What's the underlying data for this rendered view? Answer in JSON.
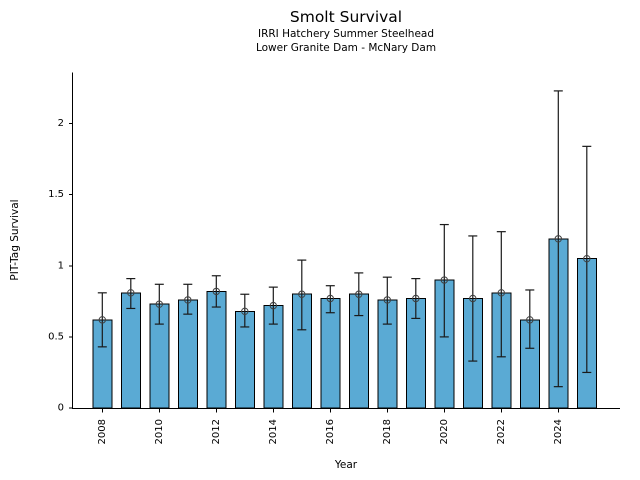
{
  "chart_data": {
    "type": "bar",
    "title": "Smolt Survival",
    "subtitle1": "IRRI Hatchery Summer Steelhead",
    "subtitle2": "Lower Granite Dam - McNary Dam",
    "xlabel": "Year",
    "ylabel": "PIT-Tag Survival",
    "categories": [
      2008,
      2009,
      2010,
      2011,
      2012,
      2013,
      2014,
      2015,
      2016,
      2017,
      2018,
      2019,
      2020,
      2021,
      2022,
      2023,
      2024,
      2025
    ],
    "values": [
      0.62,
      0.81,
      0.73,
      0.76,
      0.82,
      0.68,
      0.72,
      0.8,
      0.77,
      0.8,
      0.76,
      0.77,
      0.9,
      0.77,
      0.81,
      0.62,
      1.19,
      1.05
    ],
    "err_lo": [
      0.43,
      0.7,
      0.59,
      0.66,
      0.71,
      0.57,
      0.59,
      0.55,
      0.67,
      0.65,
      0.59,
      0.63,
      0.5,
      0.33,
      0.36,
      0.42,
      0.15,
      0.25
    ],
    "err_hi": [
      0.81,
      0.91,
      0.87,
      0.87,
      0.93,
      0.8,
      0.85,
      1.04,
      0.86,
      0.95,
      0.92,
      0.91,
      1.29,
      1.21,
      1.24,
      0.83,
      2.23,
      1.84
    ],
    "xticks": [
      2008,
      2010,
      2012,
      2014,
      2016,
      2018,
      2020,
      2022,
      2024
    ],
    "yticks": [
      0,
      0.5,
      1,
      1.5,
      2
    ],
    "ytick_labels": [
      "0",
      "0.5",
      "1",
      "1.5",
      "2"
    ],
    "ylim": [
      0,
      2.36
    ],
    "grid": false,
    "legend": "none",
    "marker": "open-circle",
    "colors": {
      "bar_fill": "#5AAAD4",
      "bar_edge": "#000000",
      "error_bar": "#1a1a1a",
      "marker_edge": "#404040",
      "axis": "#000000",
      "text": "#000000"
    }
  }
}
